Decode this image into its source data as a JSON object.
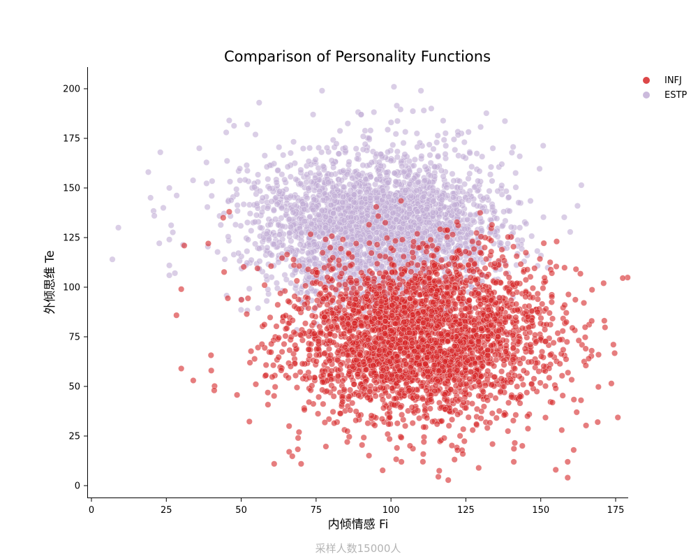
{
  "chart_data": {
    "type": "scatter",
    "title": "Comparison of Personality Functions",
    "xlabel": "内倾情感 Fi",
    "ylabel": "外倾思维 Te",
    "footnote": "采样人数15000人",
    "xlim": [
      -1,
      180
    ],
    "ylim": [
      -5,
      211
    ],
    "xticks": [
      0,
      25,
      50,
      75,
      100,
      125,
      150,
      175
    ],
    "yticks": [
      0,
      25,
      50,
      75,
      100,
      125,
      150,
      175,
      200
    ],
    "grid": false,
    "legend_position": "top-right",
    "series": [
      {
        "name": "INFJ",
        "color": "#d62728",
        "center": [
          110,
          75
        ],
        "spread": [
          22,
          21
        ],
        "outliers": [
          [
            171,
            102
          ],
          [
            169,
            32
          ],
          [
            167,
            68
          ],
          [
            165,
            69
          ],
          [
            166,
            64
          ],
          [
            162,
            37
          ],
          [
            161,
            18
          ],
          [
            159,
            4
          ],
          [
            159,
            12
          ],
          [
            157,
            28
          ],
          [
            155,
            8
          ],
          [
            158,
            91
          ],
          [
            30,
            99
          ],
          [
            30,
            59
          ],
          [
            34,
            53
          ],
          [
            31,
            121
          ],
          [
            39,
            122
          ],
          [
            40,
            58
          ],
          [
            41,
            48
          ],
          [
            44,
            135
          ],
          [
            46,
            138
          ],
          [
            61,
            11
          ],
          [
            70,
            11
          ],
          [
            69,
            24
          ],
          [
            66,
            30
          ],
          [
            102,
            19
          ],
          [
            111,
            22
          ],
          [
            124,
            16
          ],
          [
            141,
            12
          ],
          [
            155,
            49
          ]
        ]
      },
      {
        "name": "ESTP",
        "color": "#c2aed6",
        "center": [
          95,
          130
        ],
        "spread": [
          20,
          19
        ],
        "outliers": [
          [
            7,
            114
          ],
          [
            9,
            130
          ],
          [
            19,
            158
          ],
          [
            23,
            168
          ],
          [
            21,
            136
          ],
          [
            24,
            140
          ],
          [
            26,
            150
          ],
          [
            26,
            124
          ],
          [
            26,
            111
          ],
          [
            26,
            106
          ],
          [
            36,
            170
          ],
          [
            45,
            178
          ],
          [
            46,
            184
          ],
          [
            56,
            193
          ],
          [
            52,
            182
          ],
          [
            77,
            199
          ],
          [
            101,
            201
          ],
          [
            110,
            199
          ],
          [
            90,
            187
          ],
          [
            74,
            187
          ],
          [
            139,
            122
          ],
          [
            143,
            130
          ],
          [
            137,
            162
          ],
          [
            134,
            170
          ]
        ]
      }
    ]
  }
}
